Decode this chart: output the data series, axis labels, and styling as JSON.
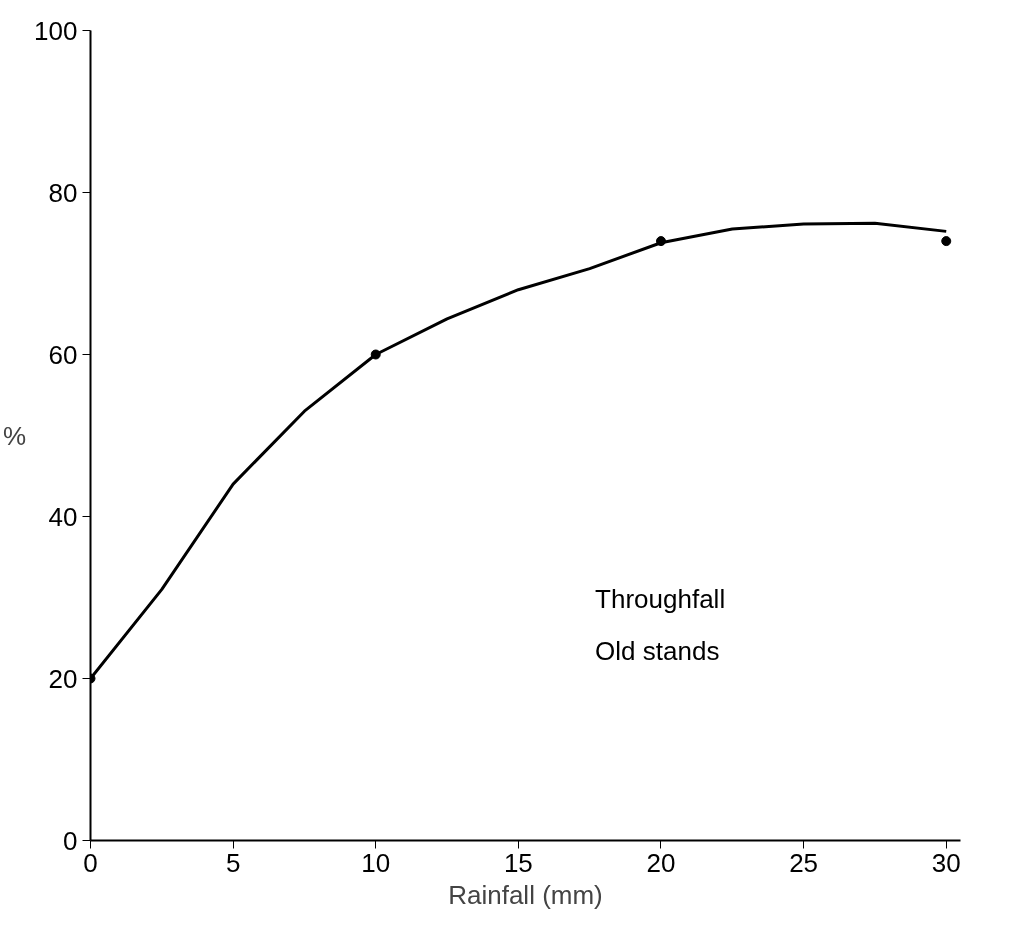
{
  "chart_data": {
    "type": "scatter",
    "xlabel": "Rainfall (mm)",
    "ylabel": "%",
    "xlim": [
      0,
      30.5
    ],
    "ylim": [
      0,
      100
    ],
    "xticks": [
      0,
      5,
      10,
      15,
      20,
      25,
      30
    ],
    "yticks": [
      0,
      20,
      40,
      60,
      80,
      100
    ],
    "grid": false,
    "annotations": [
      "Throughfall",
      "Old stands"
    ],
    "series": [
      {
        "color": "#000000",
        "marker": "circle",
        "x": [
          0,
          10,
          20,
          30
        ],
        "values": [
          20,
          60,
          74,
          74
        ]
      },
      {
        "type": "line",
        "color": "#000000",
        "line_style": "solid",
        "x": [
          0,
          2.5,
          5,
          7.5,
          10,
          12.5,
          15,
          17.5,
          20,
          22.5,
          25,
          27.5,
          30
        ],
        "values": [
          20,
          31,
          44,
          53,
          60,
          64.4,
          68,
          70.6,
          73.8,
          75.5,
          76.1,
          76.2,
          75.2
        ]
      }
    ]
  }
}
